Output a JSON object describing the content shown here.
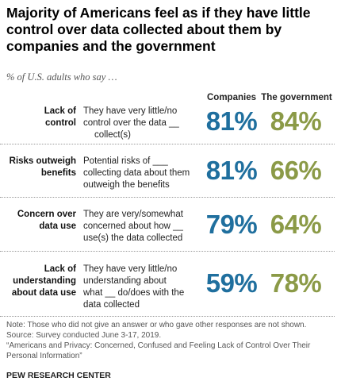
{
  "title": "Majority of Americans feel as if they have little control over data collected about them by companies and the government",
  "subtitle": "% of U.S. adults who say …",
  "colors": {
    "companies": "#1f6f9e",
    "government": "#8b9a47"
  },
  "chart_data": {
    "type": "table",
    "columns": [
      "Companies",
      "The government"
    ],
    "rows": [
      {
        "category_line1": "Lack of",
        "category_line2": "control",
        "category_line3": "",
        "desc_line1": "They have very little/no",
        "desc_line2": "control over the data __",
        "desc_line3": "collect(s)",
        "desc_line4": "",
        "values": [
          81,
          84
        ],
        "labels": [
          "81%",
          "84%"
        ]
      },
      {
        "category_line1": "Risks outweigh",
        "category_line2": "benefits",
        "category_line3": "",
        "desc_line1": "Potential risks of ___",
        "desc_line2": "collecting data about them",
        "desc_line3": "outweigh the benefits",
        "desc_line4": "",
        "values": [
          81,
          66
        ],
        "labels": [
          "81%",
          "66%"
        ]
      },
      {
        "category_line1": "Concern over",
        "category_line2": "data use",
        "category_line3": "",
        "desc_line1": "They are very/somewhat",
        "desc_line2": "concerned about how __",
        "desc_line3": "use(s) the data collected",
        "desc_line4": "",
        "values": [
          79,
          64
        ],
        "labels": [
          "79%",
          "64%"
        ]
      },
      {
        "category_line1": "Lack of",
        "category_line2": "understanding",
        "category_line3": "about data use",
        "desc_line1": "They have very little/no",
        "desc_line2": "understanding about",
        "desc_line3": "what __ do/does with the",
        "desc_line4": "data collected",
        "values": [
          59,
          78
        ],
        "labels": [
          "59%",
          "78%"
        ]
      }
    ]
  },
  "notes": {
    "line1": "Note: Those who did not give an answer or who gave other responses are not shown.",
    "line2": "Source: Survey conducted June 3-17, 2019.",
    "line3": "“Americans and Privacy: Concerned, Confused and Feeling Lack of Control Over Their",
    "line4": "Personal Information”"
  },
  "brand": "PEW RESEARCH CENTER"
}
